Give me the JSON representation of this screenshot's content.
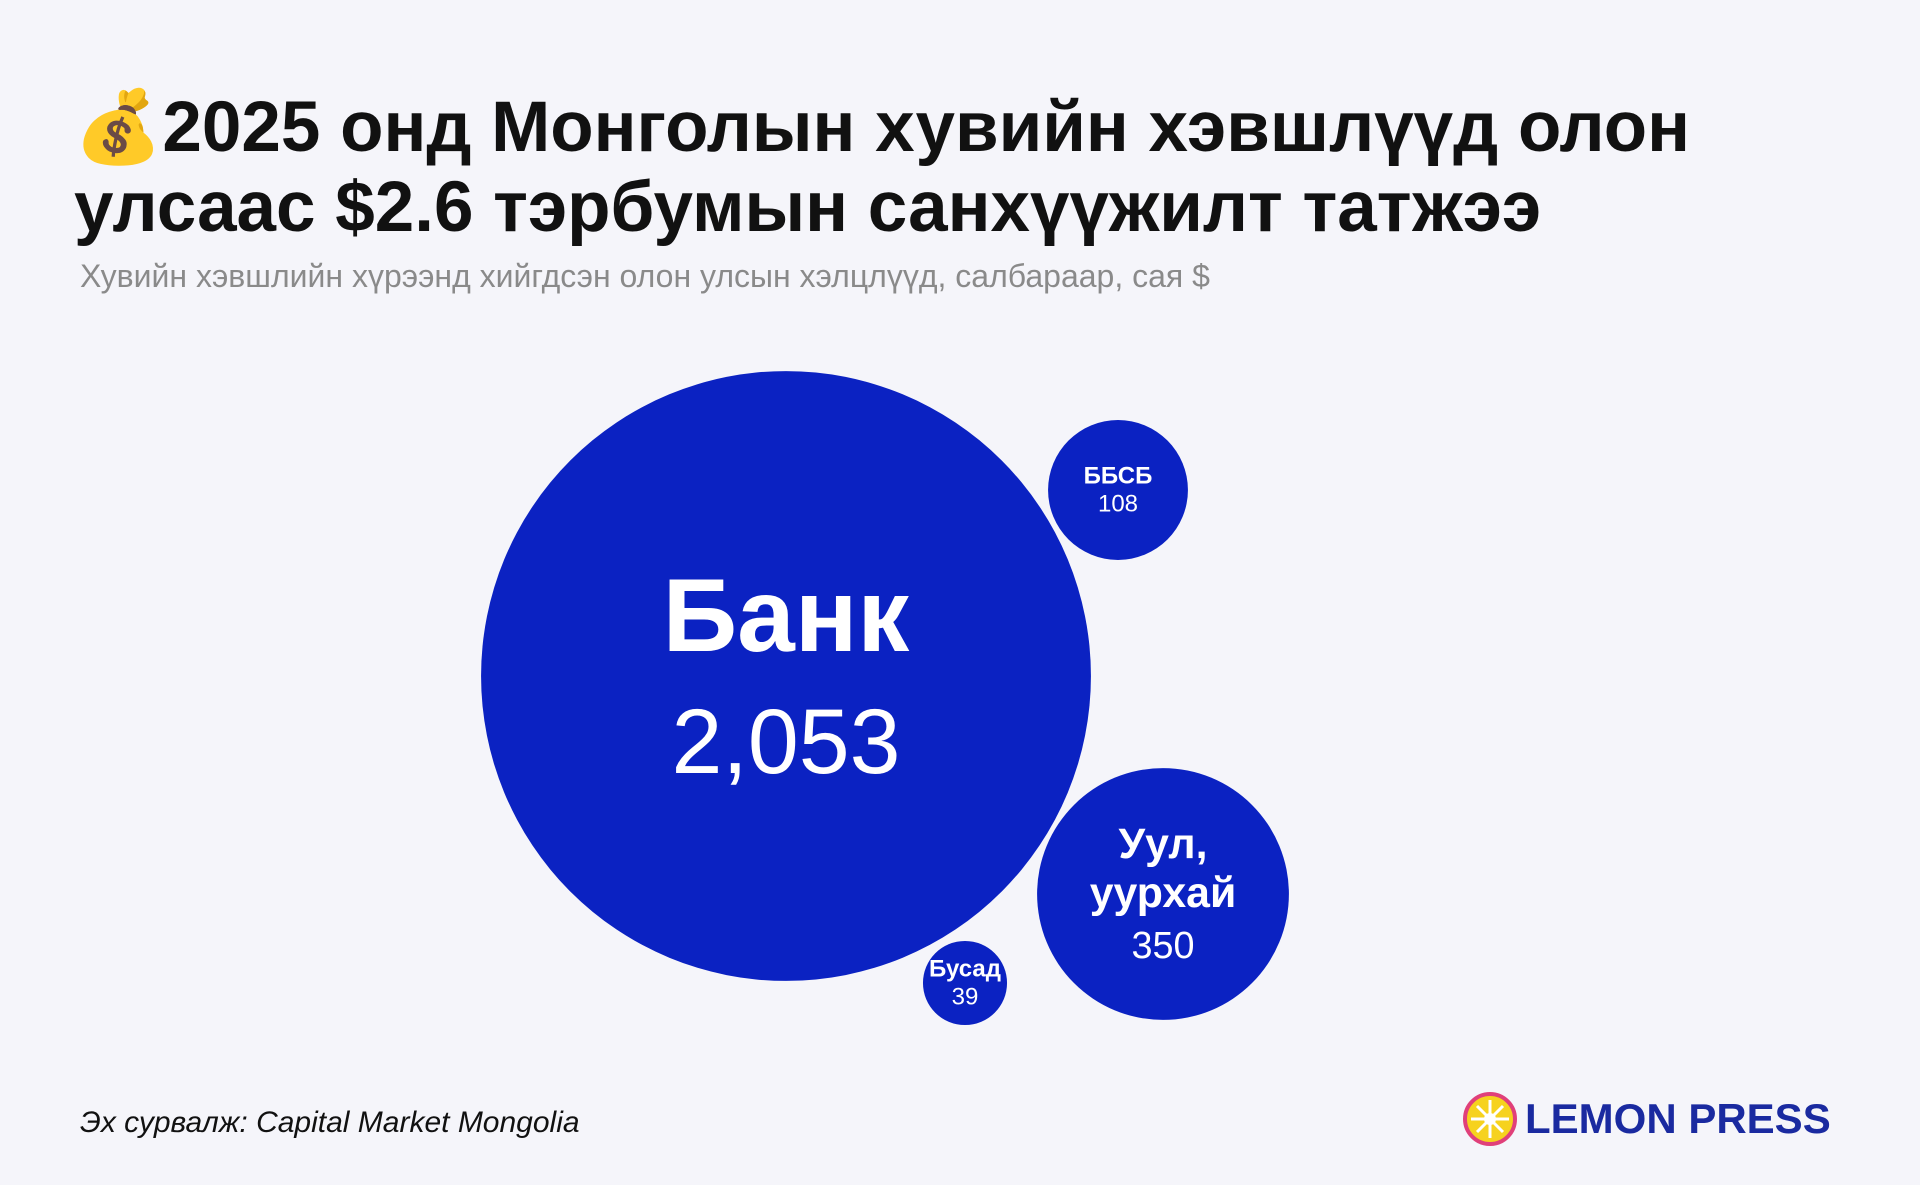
{
  "chart_data": {
    "type": "bubble",
    "title": "💰2025 онд Монголын хувийн хэвшлүүд олон улсаас $2.6 тэрбумын санхүүжилт татжээ",
    "subtitle": "Хувийн хэвшлийн хүрээнд хийгдсэн олон улсын хэлцлүүд, салбараар, сая $",
    "categories": [
      "Банк",
      "ББСБ",
      "Уул, уурхай",
      "Бусад"
    ],
    "values": [
      2053,
      108,
      350,
      39
    ],
    "value_labels": [
      "2,053",
      "108",
      "350",
      "39"
    ],
    "color": "#0b22c2"
  },
  "footer": {
    "source": "Эх сурвалж: Capital Market Mongolia",
    "logo": "LEMON PRESS"
  }
}
